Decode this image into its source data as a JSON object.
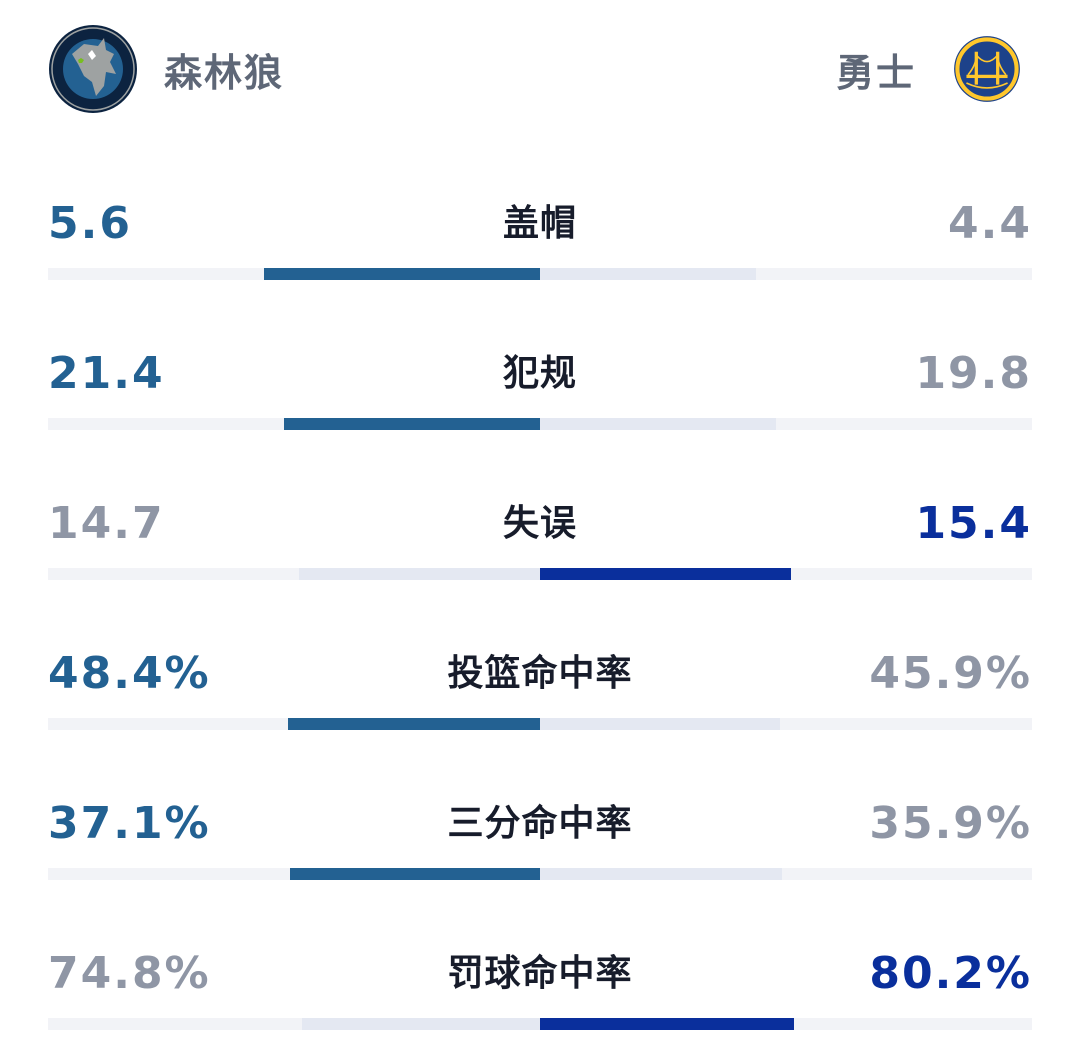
{
  "teams": {
    "home": {
      "name": "森林狼",
      "logo_icon": "timberwolves-logo-icon",
      "color": "#236192"
    },
    "away": {
      "name": "勇士",
      "logo_icon": "warriors-logo-icon",
      "color": "#0a2f9c"
    }
  },
  "colors": {
    "lead_home": "#236192",
    "lead_away": "#0a2f9c",
    "trail_text": "#8f96a5",
    "trail_bar": "#e4e8f2",
    "track": "#f2f3f7"
  },
  "stats": [
    {
      "label": "盖帽",
      "home": "5.6",
      "away": "4.4",
      "home_share": 0.56,
      "away_share": 0.44,
      "leader": "home"
    },
    {
      "label": "犯规",
      "home": "21.4",
      "away": "19.8",
      "home_share": 0.52,
      "away_share": 0.48,
      "leader": "home"
    },
    {
      "label": "失误",
      "home": "14.7",
      "away": "15.4",
      "home_share": 0.49,
      "away_share": 0.51,
      "leader": "away"
    },
    {
      "label": "投篮命中率",
      "home": "48.4%",
      "away": "45.9%",
      "home_share": 0.513,
      "away_share": 0.487,
      "leader": "home"
    },
    {
      "label": "三分命中率",
      "home": "37.1%",
      "away": "35.9%",
      "home_share": 0.508,
      "away_share": 0.492,
      "leader": "home"
    },
    {
      "label": "罚球命中率",
      "home": "74.8%",
      "away": "80.2%",
      "home_share": 0.483,
      "away_share": 0.517,
      "leader": "away"
    }
  ]
}
